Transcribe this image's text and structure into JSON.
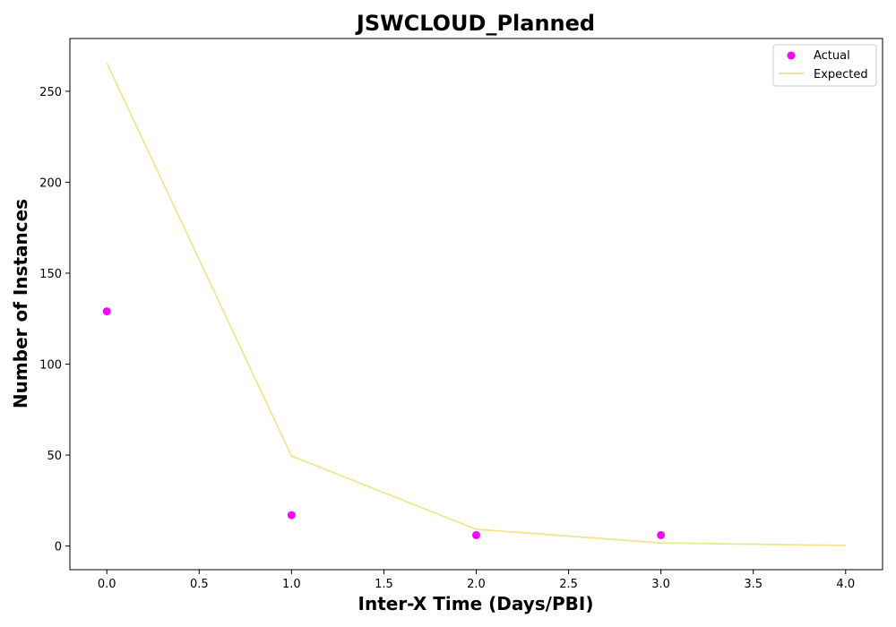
{
  "chart_data": {
    "type": "scatter+line",
    "title": "JSWCLOUD_Planned",
    "xlabel": "Inter-X Time (Days/PBI)",
    "ylabel": "Number of Instances",
    "xlim": [
      -0.2,
      4.2
    ],
    "ylim": [
      -13,
      279
    ],
    "x_ticks": [
      0.0,
      0.5,
      1.0,
      1.5,
      2.0,
      2.5,
      3.0,
      3.5,
      4.0
    ],
    "x_tick_labels": [
      "0.0",
      "0.5",
      "1.0",
      "1.5",
      "2.0",
      "2.5",
      "3.0",
      "3.5",
      "4.0"
    ],
    "y_ticks": [
      0,
      50,
      100,
      150,
      200,
      250
    ],
    "y_tick_labels": [
      "0",
      "50",
      "100",
      "150",
      "200",
      "250"
    ],
    "legend_position": "top-right",
    "series": [
      {
        "name": "Actual",
        "kind": "scatter",
        "color": "#ff00ff",
        "x": [
          0,
          1,
          2,
          3
        ],
        "y": [
          129,
          17,
          6,
          6
        ]
      },
      {
        "name": "Expected",
        "kind": "line",
        "color": "#f0e68c",
        "x": [
          0,
          1,
          2,
          3,
          4
        ],
        "y": [
          265.5,
          49.5,
          9.2,
          1.7,
          0.3
        ]
      }
    ]
  }
}
